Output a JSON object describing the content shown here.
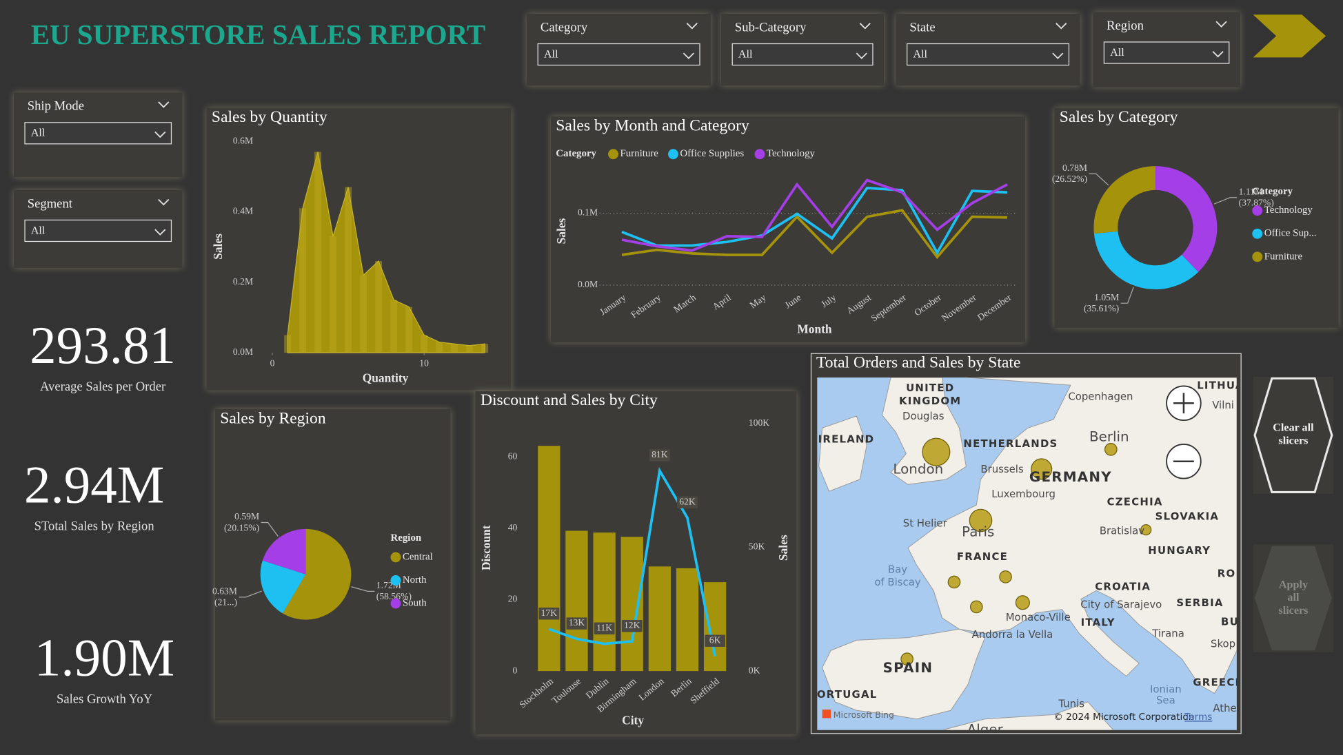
{
  "header": {
    "title": "EU SUPERSTORE SALES REPORT"
  },
  "slicers": [
    {
      "label": "Category",
      "value": "All"
    },
    {
      "label": "Sub-Category",
      "value": "All"
    },
    {
      "label": "State",
      "value": "All"
    },
    {
      "label": "Region",
      "value": "All"
    },
    {
      "label": "Ship Mode",
      "value": "All"
    },
    {
      "label": "Segment",
      "value": "All"
    }
  ],
  "kpis": [
    {
      "value": "293.81",
      "label": "Average Sales per Order"
    },
    {
      "value": "2.94M",
      "label": "STotal Sales by Region"
    },
    {
      "value": "1.90M",
      "label": "Sales Growth YoY"
    }
  ],
  "buttons": [
    [
      "Clear all",
      "slicers"
    ],
    [
      "Apply",
      "all",
      "slicers"
    ]
  ],
  "map": {
    "title": "Total Orders and Sales by State",
    "labels": [
      "UNITED",
      "KINGDOM",
      "Douglas",
      "IRELAND",
      "London",
      "NETHERLANDS",
      "Brussels",
      "GERMANY",
      "Berlin",
      "Copenhagen",
      "LITHUA",
      "Vilni",
      "Luxembourg",
      "CZECHIA",
      "SLOVAKIA",
      "St Helier",
      "Paris",
      "Bratislav",
      "HUNGARY",
      "FRANCE",
      "RO",
      "Bay",
      "of Biscay",
      "CROATIA",
      "City of Sarajevo",
      "SERBIA",
      "Monaco-Ville",
      "ITALY",
      "BU",
      "Andorra la Vella",
      "Tirana",
      "Skop",
      "SPAIN",
      "GREECE",
      "ORTUGAL",
      "Tunis",
      "Ionian",
      "Sea",
      "Athe",
      "Alger"
    ],
    "attribution": [
      "Microsoft Bing",
      "© 2024 Microsoft Corporation",
      "Terms"
    ]
  },
  "chart_data": [
    {
      "type": "area",
      "title": "Sales by Quantity",
      "x_label": "Quantity",
      "y_label": "Sales",
      "x": [
        1,
        2,
        3,
        4,
        5,
        6,
        7,
        8,
        9,
        10,
        11,
        12,
        13,
        14
      ],
      "values": [
        0.05,
        0.41,
        0.57,
        0.33,
        0.47,
        0.22,
        0.26,
        0.15,
        0.13,
        0.05,
        0.03,
        0.025,
        0.02,
        0.025
      ],
      "color": "#a6930c",
      "xlim": [
        0,
        14
      ],
      "xticks": [
        0,
        10
      ],
      "ylim": [
        0,
        0.6
      ],
      "yticks": [
        {
          "value": 0,
          "label": "0.0M"
        },
        {
          "value": 0.2,
          "label": "0.2M"
        },
        {
          "value": 0.4,
          "label": "0.4M"
        },
        {
          "value": 0.6,
          "label": "0.6M"
        }
      ]
    },
    {
      "type": "line",
      "title": "Sales by Month and Category",
      "x_label": "Month",
      "y_label": "Sales",
      "legend_title": "Category",
      "categories": [
        "January",
        "February",
        "March",
        "April",
        "May",
        "June",
        "July",
        "August",
        "September",
        "October",
        "November",
        "December"
      ],
      "series": [
        {
          "name": "Furniture",
          "color": "#a6930c",
          "values": [
            0.042,
            0.049,
            0.044,
            0.042,
            0.042,
            0.095,
            0.045,
            0.095,
            0.104,
            0.039,
            0.095,
            0.094
          ]
        },
        {
          "name": "Office Supplies",
          "color": "#1ec0f2",
          "values": [
            0.074,
            0.055,
            0.055,
            0.06,
            0.069,
            0.099,
            0.065,
            0.135,
            0.132,
            0.045,
            0.131,
            0.129
          ]
        },
        {
          "name": "Technology",
          "color": "#a43ee6",
          "values": [
            0.063,
            0.054,
            0.048,
            0.068,
            0.067,
            0.14,
            0.081,
            0.146,
            0.129,
            0.077,
            0.114,
            0.14
          ]
        }
      ],
      "ylim": [
        0,
        0.15
      ],
      "yticks": [
        {
          "value": 0,
          "label": "0.0M"
        },
        {
          "value": 0.1,
          "label": "0.1M"
        }
      ],
      "grid": true
    },
    {
      "type": "donut",
      "title": "Sales by Category",
      "legend_title": "Category",
      "categories": [
        "Technology",
        "Office Sup...",
        "Furniture"
      ],
      "values": [
        1.11,
        1.05,
        0.78
      ],
      "value_labels": [
        "1.11M",
        "1.05M",
        "0.78M"
      ],
      "percent_labels": [
        "(37.87%)",
        "(35.61%)",
        "(26.52%)"
      ],
      "colors": [
        "#a43ee6",
        "#1ec0f2",
        "#a6930c"
      ]
    },
    {
      "type": "pie",
      "title": "Sales by Region",
      "legend_title": "Region",
      "categories": [
        "Central",
        "North",
        "South"
      ],
      "values": [
        1.72,
        0.63,
        0.59
      ],
      "value_labels": [
        "1.72M",
        "0.63M",
        "0.59M"
      ],
      "percent_labels": [
        "(58.56%)",
        "(21...)",
        "(20.15%)"
      ],
      "colors": [
        "#a6930c",
        "#1ec0f2",
        "#a43ee6"
      ]
    },
    {
      "type": "combo",
      "title": "Discount and Sales by City",
      "x_label": "City",
      "y_label": "Discount",
      "y2_label": "Sales",
      "categories": [
        "Stockholm",
        "Toulouse",
        "Dublin",
        "Birmingham",
        "London",
        "Berlin",
        "Sheffield"
      ],
      "series": [
        {
          "name": "Discount",
          "type": "bar",
          "color": "#a6930c",
          "values": [
            63.1,
            39.3,
            38.8,
            37.6,
            29.3,
            28.8,
            24.9
          ]
        },
        {
          "name": "Sales",
          "type": "line",
          "axis": "y2",
          "color": "#1ec0f2",
          "values": [
            17000,
            13000,
            11000,
            12000,
            81000,
            62000,
            6000
          ],
          "value_labels": [
            "17K",
            "13K",
            "11K",
            "12K",
            "81K",
            "62K",
            "6K"
          ]
        }
      ],
      "ylim": [
        0,
        69.3
      ],
      "yticks": [
        0,
        20,
        40,
        60
      ],
      "y2lim": [
        0,
        100000
      ],
      "y2ticks": [
        {
          "value": 0,
          "label": "0K"
        },
        {
          "value": 50000,
          "label": "50K"
        },
        {
          "value": 100000,
          "label": "100K"
        }
      ]
    }
  ]
}
